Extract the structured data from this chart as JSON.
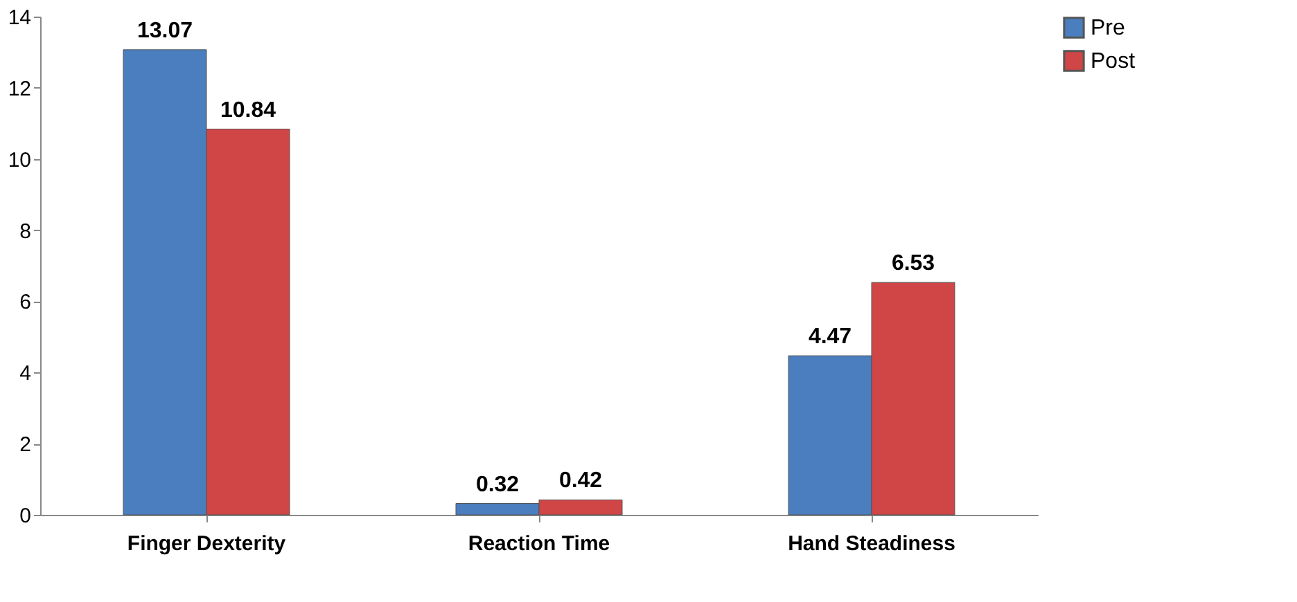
{
  "chart_data": {
    "type": "bar",
    "categories": [
      "Finger Dexterity",
      "Reaction Time",
      "Hand Steadiness"
    ],
    "series": [
      {
        "name": "Pre",
        "color": "#4a7ebf",
        "values": [
          13.07,
          0.32,
          4.47
        ]
      },
      {
        "name": "Post",
        "color": "#d04545",
        "values": [
          10.84,
          0.42,
          6.53
        ]
      }
    ],
    "ylim": [
      0,
      14
    ],
    "yticks": [
      0,
      2,
      4,
      6,
      8,
      10,
      12,
      14
    ],
    "data_labels": true,
    "legend": "right",
    "grid": false
  }
}
